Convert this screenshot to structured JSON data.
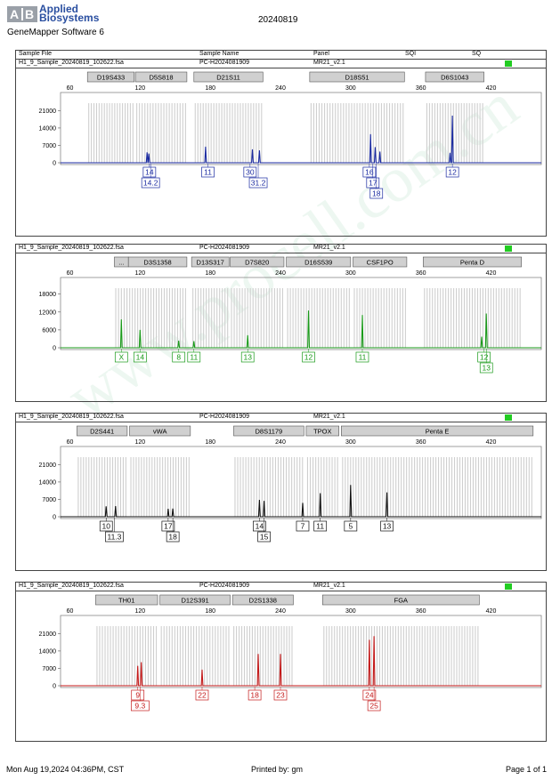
{
  "header": {
    "logo_mark": "A|B",
    "brand_line1": "Applied",
    "brand_line2": "Biosystems",
    "software": "GeneMapper Software 6",
    "date": "20240819"
  },
  "columns": [
    "Sample File",
    "Sample Name",
    "Panel",
    "SQI",
    "SQ"
  ],
  "watermark": "www.procell.com.cn",
  "footer": {
    "timestamp": "Mon Aug 19,2024 04:36PM, CST",
    "printed_by": "Printed by: gm",
    "page": "Page 1 of 1"
  },
  "chart_data": [
    {
      "type": "line",
      "sample_file": "H1_9_Sample_20240819_102622.fsa",
      "sample_name": "PC-H2024081909",
      "panel": "MR21_v2.1",
      "color": "#1a2aa0",
      "x_ticks": [
        60,
        120,
        180,
        240,
        300,
        360,
        420
      ],
      "xlim": [
        52,
        463
      ],
      "y_ticks": [
        0,
        7000,
        14000,
        21000
      ],
      "ylim": [
        0,
        24000
      ],
      "markers": [
        {
          "label": "D19S433",
          "start": 75,
          "end": 115
        },
        {
          "label": "D5S818",
          "start": 116,
          "end": 160
        },
        {
          "label": "D21S11",
          "start": 166,
          "end": 225
        },
        {
          "label": "D18S51",
          "start": 265,
          "end": 346
        },
        {
          "label": "D6S1043",
          "start": 364,
          "end": 414
        }
      ],
      "peaks": [
        {
          "x": 126,
          "y": 4200
        },
        {
          "x": 127.5,
          "y": 3700
        },
        {
          "x": 176,
          "y": 6500
        },
        {
          "x": 216,
          "y": 5400
        },
        {
          "x": 222,
          "y": 5000
        },
        {
          "x": 317,
          "y": 11500
        },
        {
          "x": 321,
          "y": 6300
        },
        {
          "x": 325,
          "y": 4500
        },
        {
          "x": 385,
          "y": 4000
        },
        {
          "x": 387,
          "y": 19000
        }
      ],
      "alleles": [
        {
          "label": "14",
          "x": 128,
          "row": 0
        },
        {
          "label": "14.2",
          "x": 129,
          "row": 1
        },
        {
          "label": "11",
          "x": 178,
          "row": 0
        },
        {
          "label": "30",
          "x": 214,
          "row": 0
        },
        {
          "label": "31.2",
          "x": 221,
          "row": 1
        },
        {
          "label": "16",
          "x": 316,
          "row": 0
        },
        {
          "label": "17",
          "x": 319,
          "row": 1
        },
        {
          "label": "18",
          "x": 322,
          "row": 2
        },
        {
          "label": "12",
          "x": 387,
          "row": 0
        }
      ]
    },
    {
      "type": "line",
      "sample_file": "H1_9_Sample_20240819_102622.fsa",
      "sample_name": "PC-H2024081909",
      "panel": "MR21_v2.1",
      "color": "#1a9a1a",
      "x_ticks": [
        60,
        120,
        180,
        240,
        300,
        360,
        420
      ],
      "xlim": [
        52,
        463
      ],
      "y_ticks": [
        0,
        6000,
        12000,
        18000
      ],
      "ylim": [
        0,
        20000
      ],
      "markers": [
        {
          "label": "...",
          "start": 98,
          "end": 110
        },
        {
          "label": "D3S1358",
          "start": 110,
          "end": 160
        },
        {
          "label": "D13S317",
          "start": 164,
          "end": 196
        },
        {
          "label": "D7S820",
          "start": 197,
          "end": 243
        },
        {
          "label": "D16S539",
          "start": 245,
          "end": 300
        },
        {
          "label": "CSF1PO",
          "start": 302,
          "end": 348
        },
        {
          "label": "Penta D",
          "start": 362,
          "end": 446
        }
      ],
      "peaks": [
        {
          "x": 104,
          "y": 9500
        },
        {
          "x": 120,
          "y": 6000
        },
        {
          "x": 153,
          "y": 2400
        },
        {
          "x": 166,
          "y": 2200
        },
        {
          "x": 212,
          "y": 4200
        },
        {
          "x": 264,
          "y": 12500
        },
        {
          "x": 310,
          "y": 11000
        },
        {
          "x": 412,
          "y": 3700
        },
        {
          "x": 416,
          "y": 11500
        }
      ],
      "alleles": [
        {
          "label": "X",
          "x": 104,
          "row": 0
        },
        {
          "label": "14",
          "x": 120,
          "row": 0
        },
        {
          "label": "8",
          "x": 153,
          "row": 0
        },
        {
          "label": "11",
          "x": 166,
          "row": 0
        },
        {
          "label": "13",
          "x": 212,
          "row": 0
        },
        {
          "label": "12",
          "x": 264,
          "row": 0
        },
        {
          "label": "11",
          "x": 310,
          "row": 0
        },
        {
          "label": "12",
          "x": 414,
          "row": 0
        },
        {
          "label": "13",
          "x": 416,
          "row": 1
        }
      ]
    },
    {
      "type": "line",
      "sample_file": "H1_9_Sample_20240819_102622.fsa",
      "sample_name": "PC-H2024081909",
      "panel": "MR21_v2.1",
      "color": "#111111",
      "x_ticks": [
        60,
        120,
        180,
        240,
        300,
        360,
        420
      ],
      "xlim": [
        52,
        463
      ],
      "y_ticks": [
        0,
        7000,
        14000,
        21000
      ],
      "ylim": [
        0,
        24000
      ],
      "markers": [
        {
          "label": "D2S441",
          "start": 66,
          "end": 109
        },
        {
          "label": "vWA",
          "start": 111,
          "end": 163
        },
        {
          "label": "D8S1179",
          "start": 200,
          "end": 260
        },
        {
          "label": "TPOX",
          "start": 262,
          "end": 290
        },
        {
          "label": "Penta E",
          "start": 292,
          "end": 456
        }
      ],
      "peaks": [
        {
          "x": 91,
          "y": 4200
        },
        {
          "x": 99,
          "y": 4300
        },
        {
          "x": 144,
          "y": 3200
        },
        {
          "x": 148,
          "y": 3300
        },
        {
          "x": 222,
          "y": 6800
        },
        {
          "x": 226,
          "y": 6400
        },
        {
          "x": 259,
          "y": 5600
        },
        {
          "x": 274,
          "y": 9500
        },
        {
          "x": 300,
          "y": 12800
        },
        {
          "x": 331,
          "y": 9800
        }
      ],
      "alleles": [
        {
          "label": "10",
          "x": 91,
          "row": 0
        },
        {
          "label": "11.3",
          "x": 98,
          "row": 1
        },
        {
          "label": "17",
          "x": 144,
          "row": 0
        },
        {
          "label": "18",
          "x": 148,
          "row": 1
        },
        {
          "label": "14",
          "x": 222,
          "row": 0
        },
        {
          "label": "15",
          "x": 226,
          "row": 1
        },
        {
          "label": "7",
          "x": 259,
          "row": 0
        },
        {
          "label": "11",
          "x": 274,
          "row": 0
        },
        {
          "label": "5",
          "x": 300,
          "row": 0
        },
        {
          "label": "13",
          "x": 331,
          "row": 0
        }
      ]
    },
    {
      "type": "line",
      "sample_file": "H1_9_Sample_20240819_102622.fsa",
      "sample_name": "PC-H2024081909",
      "panel": "MR21_v2.1",
      "color": "#c41a1a",
      "x_ticks": [
        60,
        120,
        180,
        240,
        300,
        360,
        420
      ],
      "xlim": [
        52,
        463
      ],
      "y_ticks": [
        0,
        7000,
        14000,
        21000
      ],
      "ylim": [
        0,
        24000
      ],
      "markers": [
        {
          "label": "TH01",
          "start": 82,
          "end": 135
        },
        {
          "label": "D12S391",
          "start": 137,
          "end": 197
        },
        {
          "label": "D2S1338",
          "start": 199,
          "end": 251
        },
        {
          "label": "FGA",
          "start": 276,
          "end": 410
        }
      ],
      "peaks": [
        {
          "x": 118,
          "y": 8000
        },
        {
          "x": 121,
          "y": 9500
        },
        {
          "x": 173,
          "y": 6500
        },
        {
          "x": 221,
          "y": 12800
        },
        {
          "x": 240,
          "y": 12800
        },
        {
          "x": 316,
          "y": 18500
        },
        {
          "x": 320,
          "y": 20000
        }
      ],
      "alleles": [
        {
          "label": "9",
          "x": 118,
          "row": 0
        },
        {
          "label": "9.3",
          "x": 120,
          "row": 1
        },
        {
          "label": "22",
          "x": 173,
          "row": 0
        },
        {
          "label": "18",
          "x": 218,
          "row": 0
        },
        {
          "label": "23",
          "x": 240,
          "row": 0
        },
        {
          "label": "24",
          "x": 316,
          "row": 0
        },
        {
          "label": "25",
          "x": 320,
          "row": 1
        }
      ]
    }
  ]
}
